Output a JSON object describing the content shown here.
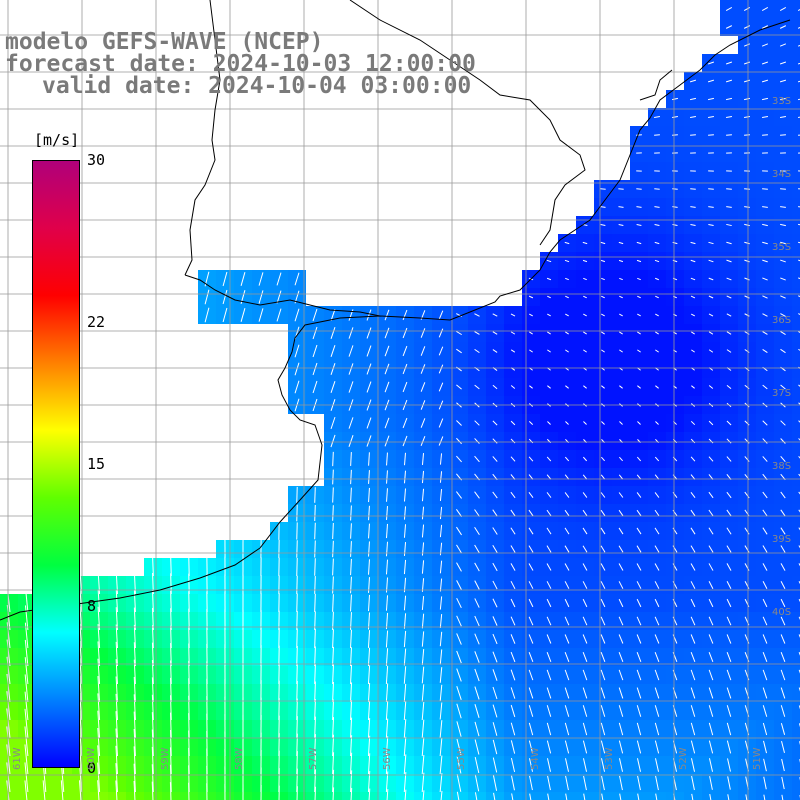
{
  "title": {
    "line1": "modelo GEFS-WAVE (NCEP)",
    "line2": "forecast date: 2024-10-03 12:00:00",
    "line3": "valid date: 2024-10-04 03:00:00"
  },
  "colorbar": {
    "unit": "[m/s]",
    "min": 0,
    "max": 30,
    "ticks": [
      {
        "value": 30,
        "label": "30"
      },
      {
        "value": 22,
        "label": "22"
      },
      {
        "value": 15,
        "label": "15"
      },
      {
        "value": 8,
        "label": "8"
      },
      {
        "value": 0,
        "label": "0"
      }
    ],
    "colors": [
      "#0000ff",
      "#0080ff",
      "#00ffff",
      "#00ff40",
      "#60ff00",
      "#ffff00",
      "#ff8000",
      "#ff0000",
      "#e0004a",
      "#b0007a"
    ]
  },
  "colors": {
    "land": "#ffffff",
    "grid": "#999999",
    "coast": "#000000",
    "arrow": "#ffffff"
  },
  "lat_labels": [
    "33S",
    "34S",
    "35S",
    "36S",
    "37S",
    "38S",
    "39S",
    "40S"
  ],
  "lon_labels": [
    "61W",
    "60W",
    "59W",
    "58W",
    "57W",
    "56W",
    "55W",
    "54W",
    "53W",
    "52W",
    "51W"
  ]
}
